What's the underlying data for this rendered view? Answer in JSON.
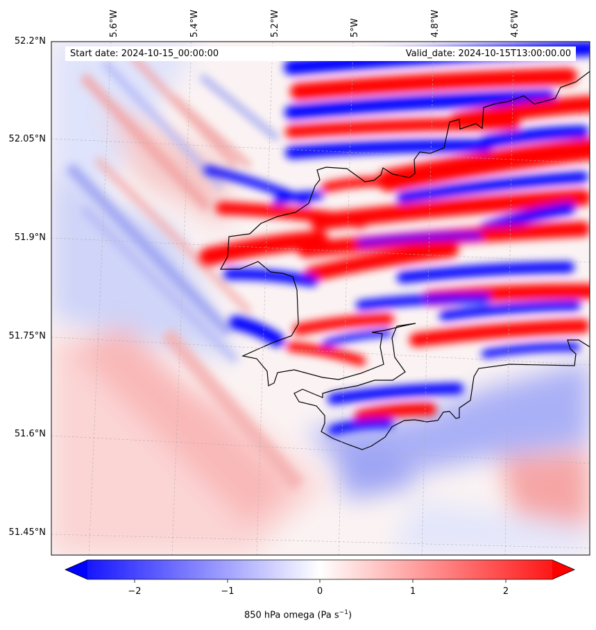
{
  "header": {
    "start_date": "Start date: 2024-10-15_00:00:00",
    "valid_date": "Valid_date: 2024-10-15T13:00:00.00"
  },
  "map": {
    "latitude_labels": [
      "52.2°N",
      "52.05°N",
      "51.9°N",
      "51.75°N",
      "51.6°N",
      "51.45°N"
    ],
    "longitude_labels": [
      "5.6°W",
      "5.4°W",
      "5.2°W",
      "5°W",
      "4.8°W",
      "4.6°W"
    ],
    "field": "850 hPa omega",
    "colormap": {
      "negative": "#0000ff",
      "zero": "#ffffff",
      "positive": "#ff0000"
    }
  },
  "colorbar": {
    "ticks": [
      "−2",
      "−1",
      "0",
      "1",
      "2"
    ],
    "range": [
      -2.6,
      2.6
    ],
    "extend": "both",
    "label": "850 hPa omega (Pa s",
    "label_exp": "−1",
    "label_close": ")"
  }
}
